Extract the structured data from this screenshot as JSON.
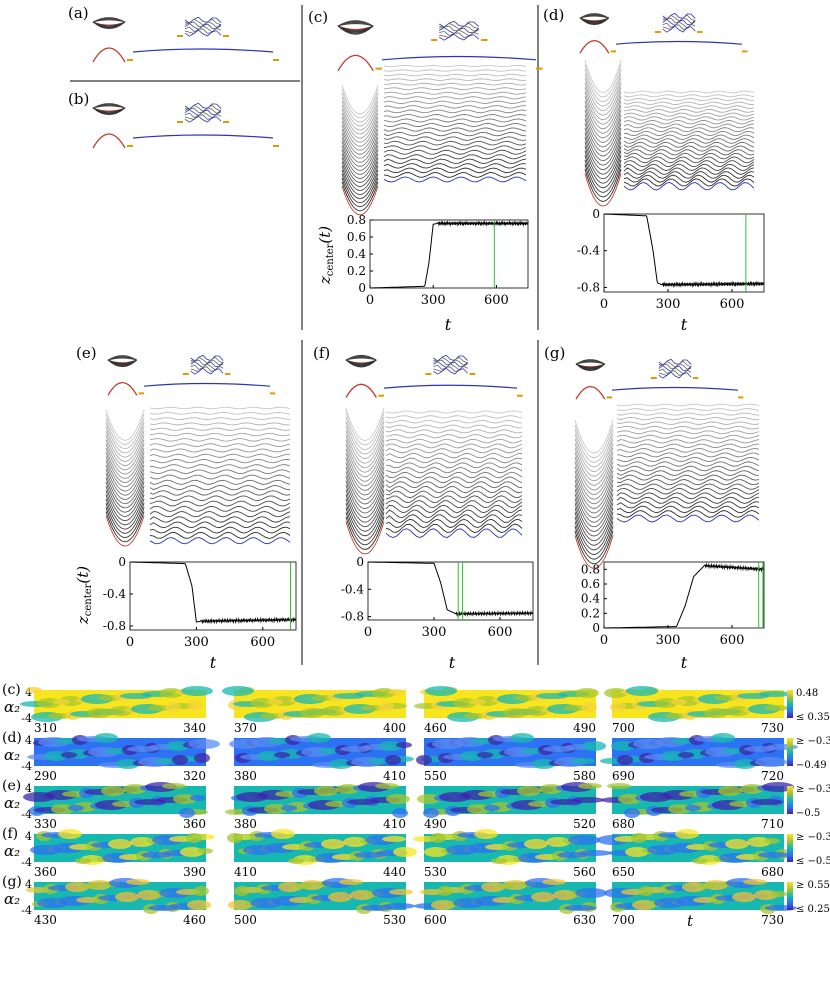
{
  "colors": {
    "red": "#c0392b",
    "blue": "#2b35b8",
    "orange": "#e39a00",
    "green": "#2fbf2f",
    "axis": "#000000"
  },
  "panels": {
    "a": {
      "label": "(a)"
    },
    "b": {
      "label": "(b)"
    },
    "c": {
      "label": "(c)"
    },
    "d": {
      "label": "(d)"
    },
    "e": {
      "label": "(e)"
    },
    "f": {
      "label": "(f)"
    },
    "g": {
      "label": "(g)"
    }
  },
  "zplot_ylabel": "z",
  "zplot_ylabel_sub": "center",
  "zplot_ylabel_arg": "(t)",
  "zplot_xlabel": "t",
  "chart_data": [
    {
      "panel": "c",
      "type": "line",
      "xlabel": "t",
      "ylabel": "z_center(t)",
      "xlim": [
        0,
        750
      ],
      "ylim": [
        0,
        0.8
      ],
      "xticks": [
        "0",
        "300",
        "600"
      ],
      "yticks": [
        "0",
        "0.2",
        "0.4",
        "0.6",
        "0.8"
      ],
      "series": [
        {
          "x": [
            0,
            260,
            280,
            300,
            320,
            750
          ],
          "y": [
            0,
            0.02,
            0.3,
            0.75,
            0.76,
            0.76
          ]
        }
      ],
      "markers": [
        590
      ]
    },
    {
      "panel": "d",
      "type": "line",
      "xlabel": "t",
      "ylabel": "",
      "xlim": [
        0,
        750
      ],
      "ylim": [
        -0.85,
        0
      ],
      "xticks": [
        "0",
        "300",
        "600"
      ],
      "yticks": [
        "0",
        "-0.4",
        "-0.8"
      ],
      "series": [
        {
          "x": [
            0,
            200,
            230,
            250,
            270,
            750
          ],
          "y": [
            0,
            -0.02,
            -0.4,
            -0.75,
            -0.77,
            -0.76
          ]
        }
      ],
      "markers": [
        665
      ]
    },
    {
      "panel": "e",
      "type": "line",
      "xlabel": "t",
      "ylabel": "z_center(t)",
      "xlim": [
        0,
        750
      ],
      "ylim": [
        -0.85,
        0
      ],
      "xticks": [
        "0",
        "300",
        "600"
      ],
      "yticks": [
        "0",
        "-0.4",
        "-0.8"
      ],
      "series": [
        {
          "x": [
            0,
            250,
            280,
            300,
            320,
            750
          ],
          "y": [
            0,
            -0.02,
            -0.3,
            -0.75,
            -0.74,
            -0.72
          ]
        }
      ],
      "markers": [
        725
      ]
    },
    {
      "panel": "f",
      "type": "line",
      "xlabel": "t",
      "ylabel": "",
      "xlim": [
        0,
        750
      ],
      "ylim": [
        -0.85,
        0
      ],
      "xticks": [
        "0",
        "300",
        "600"
      ],
      "yticks": [
        "0",
        "-0.4",
        "-0.8"
      ],
      "series": [
        {
          "x": [
            0,
            300,
            330,
            360,
            400,
            750
          ],
          "y": [
            0,
            -0.02,
            -0.3,
            -0.7,
            -0.76,
            -0.75
          ]
        }
      ],
      "markers": [
        410,
        430
      ]
    },
    {
      "panel": "g",
      "type": "line",
      "xlabel": "t",
      "ylabel": "",
      "xlim": [
        0,
        750
      ],
      "ylim": [
        0,
        0.9
      ],
      "xticks": [
        "0",
        "300",
        "600"
      ],
      "yticks": [
        "0",
        "0.2",
        "0.4",
        "0.6",
        "0.8"
      ],
      "series": [
        {
          "x": [
            0,
            340,
            380,
            420,
            470,
            750
          ],
          "y": [
            0,
            0.02,
            0.3,
            0.7,
            0.85,
            0.8
          ]
        }
      ],
      "markers": [
        725,
        745
      ]
    },
    {
      "panel": "c",
      "type": "heatmap",
      "ylabel": "α₂",
      "yticks": [
        "4",
        "-4"
      ],
      "windows": [
        [
          "310",
          "340"
        ],
        [
          "370",
          "400"
        ],
        [
          "460",
          "490"
        ],
        [
          "700",
          "730"
        ]
      ],
      "colorbar": [
        "0.48",
        "≤ 0.35"
      ]
    },
    {
      "panel": "d",
      "type": "heatmap",
      "ylabel": "α₂",
      "yticks": [
        "4",
        "-4"
      ],
      "windows": [
        [
          "290",
          "320"
        ],
        [
          "380",
          "410"
        ],
        [
          "550",
          "580"
        ],
        [
          "690",
          "720"
        ]
      ],
      "colorbar": [
        "≥ −0.35",
        "−0.49"
      ]
    },
    {
      "panel": "e",
      "type": "heatmap",
      "ylabel": "α₂",
      "yticks": [
        "4",
        "-4"
      ],
      "windows": [
        [
          "330",
          "360"
        ],
        [
          "380",
          "410"
        ],
        [
          "490",
          "520"
        ],
        [
          "680",
          "710"
        ]
      ],
      "colorbar": [
        "≥ −0.35",
        "−0.5"
      ]
    },
    {
      "panel": "f",
      "type": "heatmap",
      "ylabel": "α₂",
      "yticks": [
        "4",
        "-4"
      ],
      "windows": [
        [
          "360",
          "390"
        ],
        [
          "410",
          "440"
        ],
        [
          "530",
          "560"
        ],
        [
          "650",
          "680"
        ]
      ],
      "colorbar": [
        "≥ −0.35",
        "≤ −0.55"
      ]
    },
    {
      "panel": "g",
      "type": "heatmap",
      "ylabel": "α₂",
      "yticks": [
        "4",
        "-4"
      ],
      "windows": [
        [
          "430",
          "460"
        ],
        [
          "500",
          "530"
        ],
        [
          "600",
          "630"
        ],
        [
          "700",
          "730"
        ]
      ],
      "colorbar": [
        "≥ 0.55",
        "≤ 0.25"
      ],
      "xlabel": "t"
    }
  ]
}
